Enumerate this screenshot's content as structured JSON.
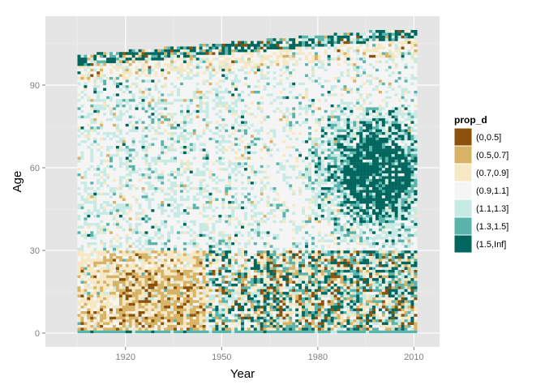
{
  "chart_data": {
    "type": "heatmap",
    "title": "",
    "xlabel": "Year",
    "ylabel": "Age",
    "x_range": [
      1905,
      2011
    ],
    "y_range": [
      0,
      110
    ],
    "xlim": [
      1895,
      2018
    ],
    "ylim": [
      -5,
      115
    ],
    "x_ticks": [
      1920,
      1950,
      1980,
      2010
    ],
    "y_ticks": [
      0,
      30,
      60,
      90
    ],
    "grid": true,
    "panel_background": "#e5e5e5",
    "legend": {
      "title": "prop_d",
      "placement": "right",
      "entries": [
        {
          "label": "(0,0.5]",
          "color": "#8c510a"
        },
        {
          "label": "(0.5,0.7]",
          "color": "#d8b365"
        },
        {
          "label": "(0.7,0.9]",
          "color": "#f6e8c3"
        },
        {
          "label": "(0.9,1.1]",
          "color": "#f5f5f5"
        },
        {
          "label": "(1.1,1.3]",
          "color": "#c7eae5"
        },
        {
          "label": "(1.3,1.5]",
          "color": "#5ab4ac"
        },
        {
          "label": "(1.5,Inf]",
          "color": "#01665e"
        }
      ]
    },
    "regions": [
      {
        "x": [
          1905,
          2011
        ],
        "y": [
          0,
          110
        ],
        "dominant_bin": "(0.9,1.1]",
        "note": "background pattern region"
      },
      {
        "x": [
          1905,
          1945
        ],
        "y": [
          0,
          30
        ],
        "dominant_bin": "(0.7,0.9]"
      },
      {
        "x": [
          1918,
          1940
        ],
        "y": [
          5,
          20
        ],
        "dominant_bin": "(0.5,0.7]"
      },
      {
        "x": [
          1980,
          2011
        ],
        "y": [
          30,
          75
        ],
        "dominant_bin": "(1.5,Inf]",
        "center": [
          1998,
          58
        ]
      },
      {
        "x": [
          1960,
          2011
        ],
        "y": [
          0,
          30
        ],
        "dominant_bin": "mixed"
      },
      {
        "x": [
          1905,
          2011
        ],
        "y": [
          95,
          110
        ],
        "dominant_bin": "(1.5,Inf]",
        "note": "top band"
      },
      {
        "x": [
          1905,
          2011
        ],
        "y": [
          0,
          1
        ],
        "dominant_bin": "(1.3,1.5]",
        "note": "age 0 row"
      }
    ]
  }
}
